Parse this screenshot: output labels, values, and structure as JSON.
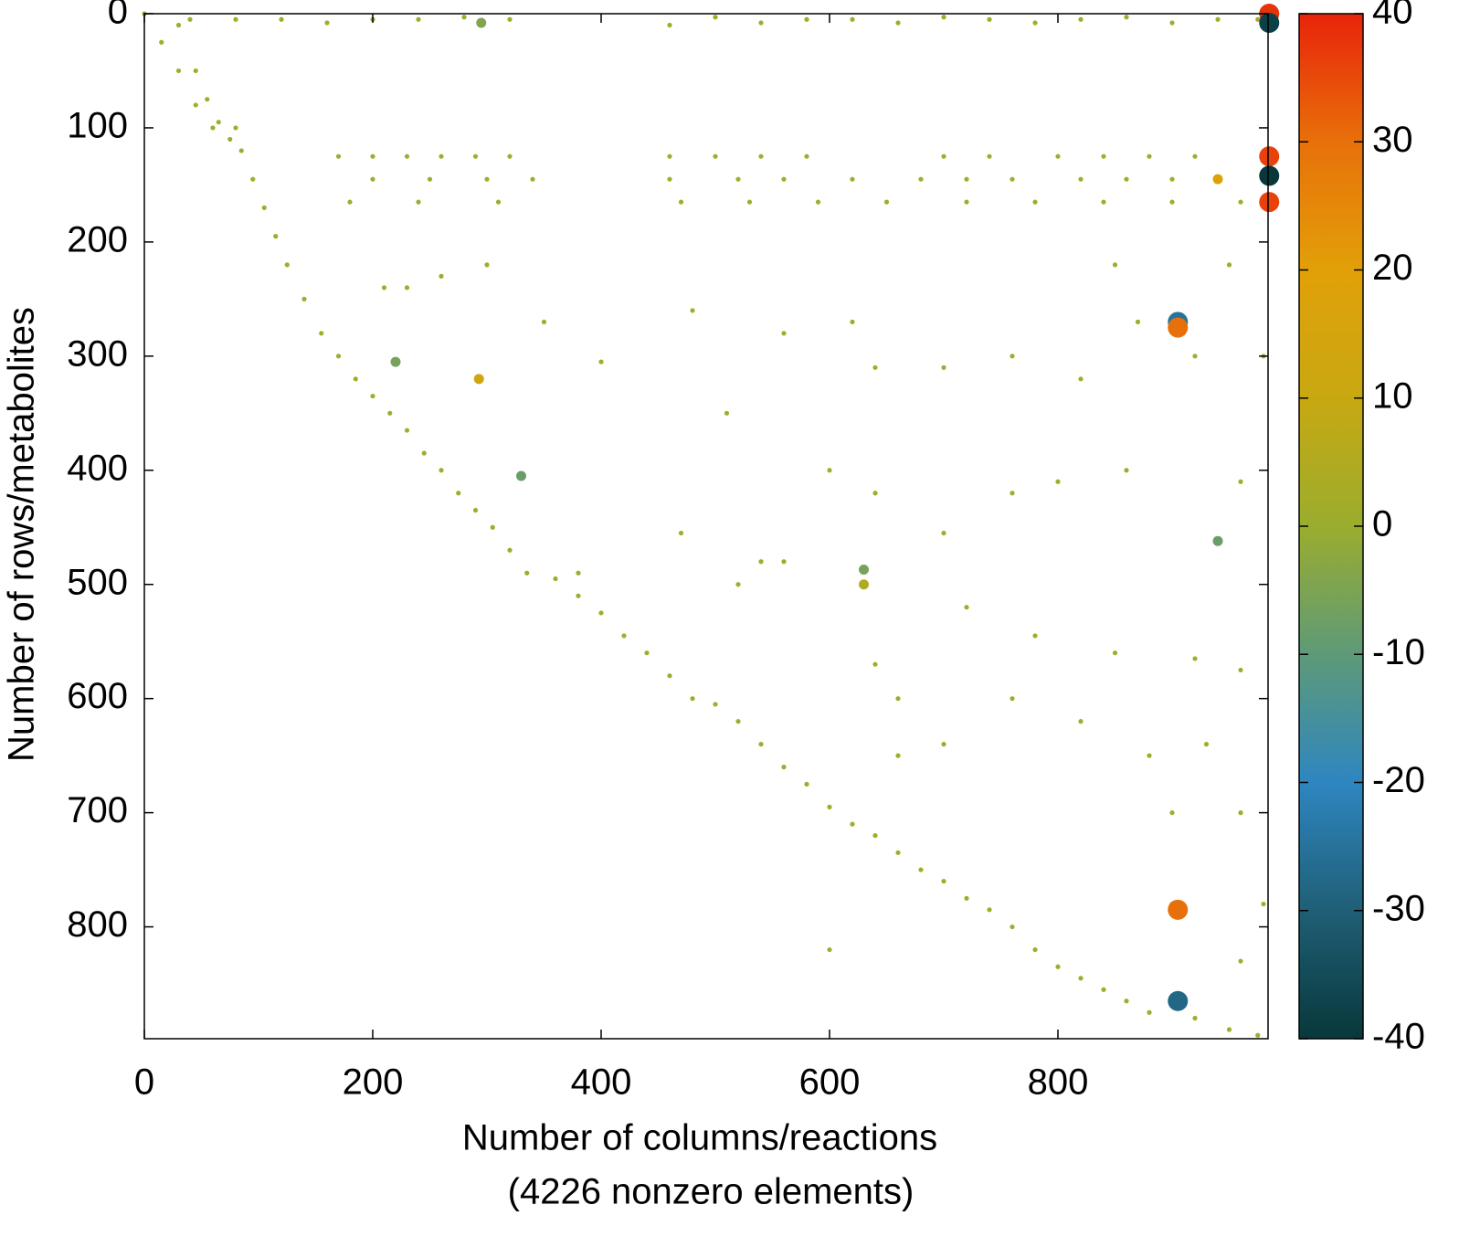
{
  "chart_data": {
    "type": "spy",
    "ylabel": "Number of rows/metabolites",
    "xlabel": [
      "Number of columns/reactions",
      "(4226 nonzero elements)"
    ],
    "xlim": [
      0,
      984
    ],
    "ylim": [
      898,
      0
    ],
    "xticks": [
      0,
      200,
      400,
      600,
      800
    ],
    "yticks": [
      0,
      100,
      200,
      300,
      400,
      500,
      600,
      700,
      800
    ],
    "clim": [
      -40,
      40
    ],
    "cticks": [
      -40,
      -30,
      -20,
      -10,
      0,
      10,
      20,
      30,
      40
    ],
    "colormap": [
      "#08383a",
      "#1f5f76",
      "#2e86c0",
      "#5e9a78",
      "#9aad2e",
      "#c8a812",
      "#e2a008",
      "#e8700a",
      "#e8240a"
    ],
    "x": [
      0,
      15,
      30,
      45,
      60,
      75,
      85,
      95,
      105,
      115,
      125,
      140,
      155,
      170,
      185,
      200,
      215,
      230,
      245,
      260,
      275,
      290,
      305,
      320,
      335,
      360,
      380,
      400,
      420,
      440,
      460,
      480,
      500,
      520,
      540,
      560,
      580,
      600,
      620,
      640,
      660,
      680,
      700,
      720,
      740,
      760,
      780,
      800,
      820,
      840,
      860,
      880,
      920,
      950,
      975,
      30,
      45,
      55,
      65,
      80,
      40,
      80,
      120,
      160,
      200,
      240,
      280,
      320,
      460,
      500,
      540,
      580,
      620,
      660,
      700,
      740,
      780,
      820,
      860,
      900,
      940,
      975,
      170,
      200,
      230,
      260,
      290,
      320,
      460,
      500,
      540,
      580,
      700,
      740,
      800,
      840,
      880,
      920,
      200,
      250,
      300,
      340,
      460,
      520,
      560,
      620,
      680,
      720,
      760,
      820,
      860,
      900,
      180,
      240,
      310,
      470,
      530,
      590,
      650,
      720,
      780,
      840,
      900,
      960,
      210,
      230,
      260,
      300,
      350,
      400,
      480,
      560,
      620,
      640,
      700,
      760,
      820,
      850,
      870,
      920,
      950,
      980,
      510,
      600,
      700,
      800,
      860,
      960,
      470,
      560,
      720,
      780,
      850,
      920,
      960,
      640,
      660,
      700,
      760,
      820,
      880,
      930,
      960,
      900,
      980,
      900,
      960,
      600,
      660,
      540,
      520,
      380,
      760,
      640,
      985,
      985,
      985,
      985,
      985,
      905,
      905,
      905,
      905,
      293,
      940,
      220,
      330,
      630,
      630,
      940,
      295
    ],
    "y": [
      0,
      25,
      50,
      80,
      100,
      110,
      120,
      145,
      170,
      195,
      220,
      250,
      280,
      300,
      320,
      335,
      350,
      365,
      385,
      400,
      420,
      435,
      450,
      470,
      490,
      495,
      510,
      525,
      545,
      560,
      580,
      600,
      605,
      620,
      640,
      660,
      675,
      695,
      710,
      720,
      735,
      750,
      760,
      775,
      785,
      800,
      820,
      835,
      845,
      855,
      865,
      875,
      880,
      890,
      895,
      10,
      50,
      75,
      95,
      100,
      5,
      5,
      5,
      8,
      5,
      5,
      3,
      5,
      10,
      3,
      8,
      5,
      5,
      8,
      3,
      5,
      8,
      5,
      3,
      8,
      5,
      5,
      125,
      125,
      125,
      125,
      125,
      125,
      125,
      125,
      125,
      125,
      125,
      125,
      125,
      125,
      125,
      125,
      145,
      145,
      145,
      145,
      145,
      145,
      145,
      145,
      145,
      145,
      145,
      145,
      145,
      145,
      165,
      165,
      165,
      165,
      165,
      165,
      165,
      165,
      165,
      165,
      165,
      165,
      240,
      240,
      230,
      220,
      270,
      305,
      260,
      280,
      270,
      310,
      310,
      300,
      320,
      220,
      270,
      300,
      220,
      300,
      350,
      400,
      455,
      410,
      400,
      410,
      455,
      480,
      520,
      545,
      560,
      565,
      575,
      570,
      600,
      640,
      600,
      620,
      650,
      640,
      700,
      700,
      780,
      780,
      830,
      820,
      650,
      480,
      500,
      490,
      420,
      420,
      0,
      8,
      125,
      142,
      165,
      270,
      275,
      785,
      865,
      320,
      145,
      305,
      405,
      487,
      500,
      462,
      8
    ],
    "values": [
      1,
      1,
      1,
      1,
      1,
      1,
      1,
      1,
      1,
      1,
      1,
      1,
      1,
      1,
      1,
      1,
      1,
      1,
      1,
      1,
      1,
      1,
      1,
      1,
      1,
      1,
      1,
      1,
      1,
      1,
      1,
      1,
      1,
      1,
      1,
      1,
      1,
      1,
      1,
      1,
      1,
      1,
      1,
      1,
      1,
      1,
      1,
      1,
      1,
      1,
      1,
      1,
      1,
      1,
      1,
      1,
      1,
      1,
      1,
      1,
      1,
      1,
      1,
      1,
      1,
      1,
      1,
      1,
      1,
      1,
      1,
      1,
      1,
      1,
      1,
      1,
      1,
      1,
      1,
      1,
      1,
      1,
      1,
      1,
      1,
      1,
      1,
      1,
      1,
      1,
      1,
      1,
      1,
      1,
      1,
      1,
      1,
      1,
      1,
      1,
      1,
      1,
      1,
      1,
      1,
      1,
      1,
      1,
      1,
      1,
      1,
      1,
      1,
      1,
      1,
      1,
      1,
      1,
      1,
      1,
      1,
      1,
      1,
      1,
      1,
      1,
      1,
      1,
      1,
      1,
      1,
      1,
      1,
      1,
      1,
      1,
      1,
      1,
      1,
      1,
      1,
      1,
      1,
      1,
      1,
      1,
      1,
      1,
      1,
      1,
      1,
      1,
      1,
      1,
      1,
      1,
      1,
      1,
      1,
      1,
      1,
      1,
      1,
      1,
      1,
      1,
      1,
      1,
      1,
      1,
      1,
      1,
      1,
      1,
      38,
      -38,
      36,
      -40,
      36,
      -25,
      30,
      30,
      -28,
      12,
      18,
      -6,
      -8,
      -6,
      5,
      -8,
      -4
    ]
  }
}
